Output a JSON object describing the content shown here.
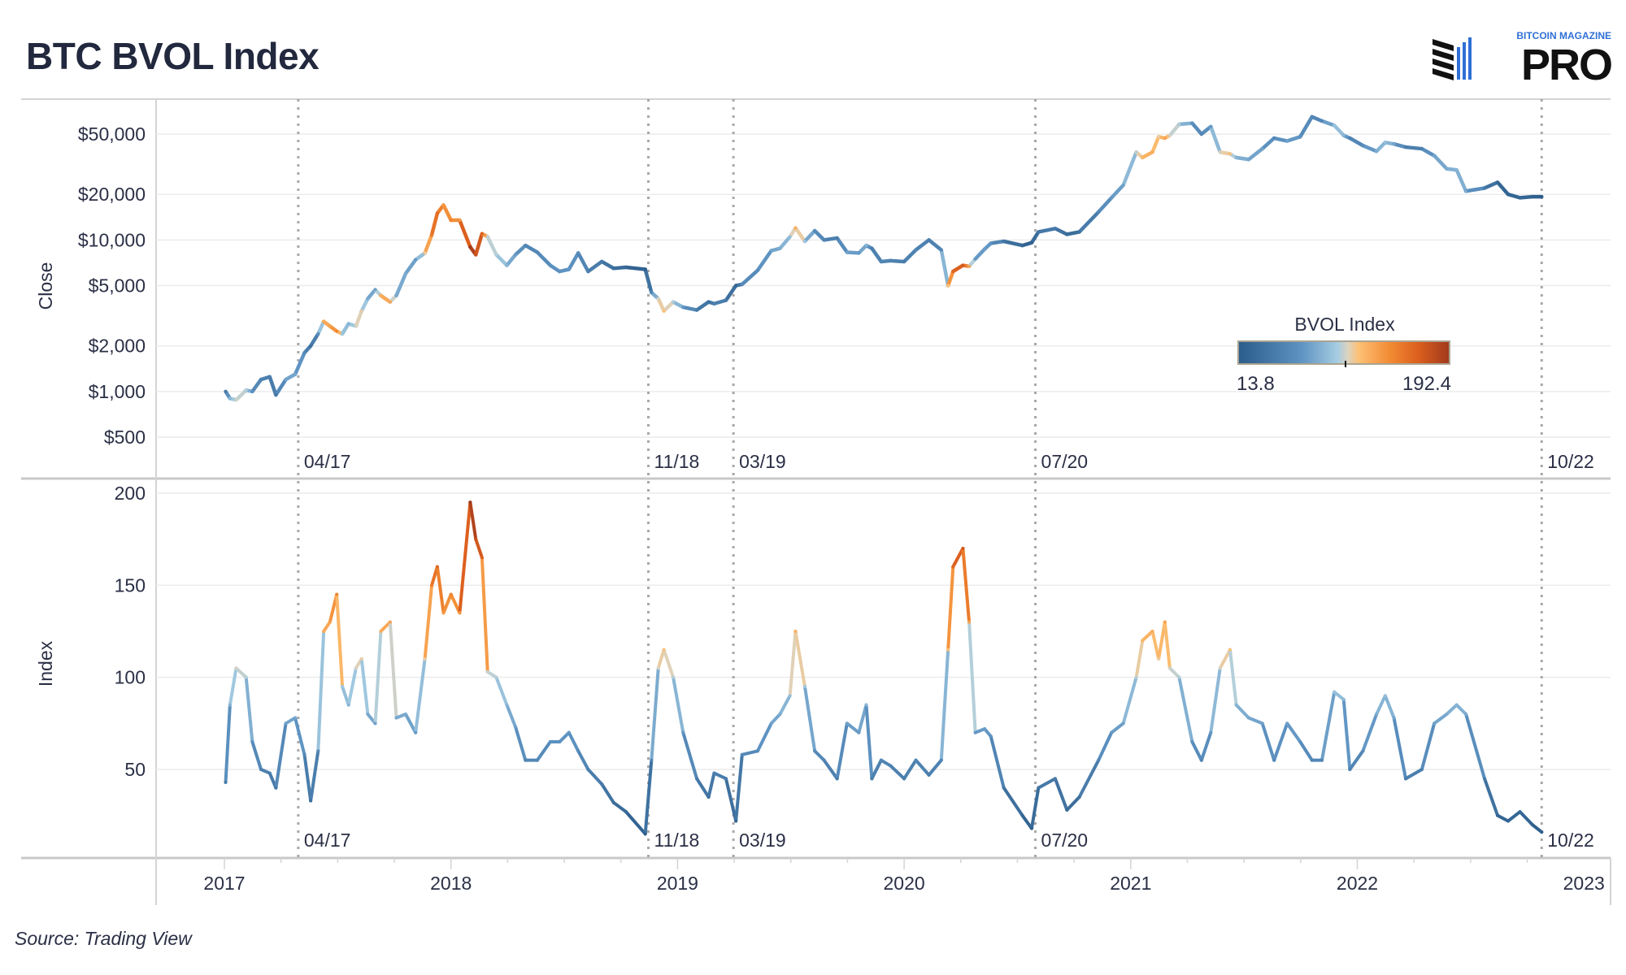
{
  "title": "BTC BVOL Index",
  "source": "Source: Trading View",
  "logo": {
    "top_text": "BITCOIN MAGAZINE",
    "main_text": "PRO",
    "accent": "#2f6fd6"
  },
  "legend": {
    "title": "BVOL Index",
    "min_label": "13.8",
    "max_label": "192.4",
    "min": 13.8,
    "max": 192.4
  },
  "colors": {
    "scale": [
      "#2b5c8a",
      "#5e93c2",
      "#a6cde2",
      "#ddd3bf",
      "#fcc074",
      "#f28a33",
      "#dc5f1e",
      "#a0391c"
    ],
    "grid": "#ececec",
    "reference_line": "#a8a8a8"
  },
  "chart_data": [
    {
      "type": "line",
      "panel": "top",
      "ylabel": "Close",
      "yscale": "log",
      "ylim": [
        330,
        75000
      ],
      "yticks": [
        {
          "value": 500,
          "label": "$500"
        },
        {
          "value": 1000,
          "label": "$1,000"
        },
        {
          "value": 2000,
          "label": "$2,000"
        },
        {
          "value": 5000,
          "label": "$5,000"
        },
        {
          "value": 10000,
          "label": "$10,000"
        },
        {
          "value": 20000,
          "label": "$20,000"
        },
        {
          "value": 50000,
          "label": "$50,000"
        }
      ],
      "color_by": "BVOL Index",
      "grid": true
    },
    {
      "type": "line",
      "panel": "bottom",
      "ylabel": "Index",
      "ylim": [
        0,
        205
      ],
      "yticks": [
        {
          "value": 50,
          "label": "50"
        },
        {
          "value": 100,
          "label": "100"
        },
        {
          "value": 150,
          "label": "150"
        },
        {
          "value": 200,
          "label": "200"
        }
      ],
      "color_by": "BVOL Index",
      "grid": true
    }
  ],
  "x_axis": {
    "ticks": [
      {
        "year": 2017,
        "label": "2017"
      },
      {
        "year": 2018,
        "label": "2018"
      },
      {
        "year": 2019,
        "label": "2019"
      },
      {
        "year": 2020,
        "label": "2020"
      },
      {
        "year": 2021,
        "label": "2021"
      },
      {
        "year": 2022,
        "label": "2022"
      },
      {
        "year": 2023,
        "label": "2023"
      }
    ]
  },
  "reference_lines": [
    {
      "date": "2017-04-30",
      "label": "04/17"
    },
    {
      "date": "2018-11-15",
      "label": "11/18"
    },
    {
      "date": "2019-04-01",
      "label": "03/19"
    },
    {
      "date": "2020-07-31",
      "label": "07/20"
    },
    {
      "date": "2022-10-25",
      "label": "10/22"
    }
  ],
  "series_points": {
    "columns": [
      "date",
      "close",
      "bvol"
    ],
    "rows": [
      [
        "2017-01-03",
        1000,
        43
      ],
      [
        "2017-01-10",
        900,
        85
      ],
      [
        "2017-01-20",
        880,
        105
      ],
      [
        "2017-02-05",
        1020,
        100
      ],
      [
        "2017-02-15",
        1000,
        65
      ],
      [
        "2017-03-01",
        1200,
        50
      ],
      [
        "2017-03-15",
        1250,
        48
      ],
      [
        "2017-03-25",
        950,
        40
      ],
      [
        "2017-04-10",
        1200,
        75
      ],
      [
        "2017-04-25",
        1300,
        78
      ],
      [
        "2017-05-10",
        1800,
        58
      ],
      [
        "2017-05-20",
        2000,
        33
      ],
      [
        "2017-06-01",
        2400,
        60
      ],
      [
        "2017-06-10",
        2900,
        125
      ],
      [
        "2017-06-20",
        2700,
        130
      ],
      [
        "2017-07-01",
        2500,
        145
      ],
      [
        "2017-07-10",
        2400,
        95
      ],
      [
        "2017-07-20",
        2800,
        85
      ],
      [
        "2017-08-01",
        2700,
        105
      ],
      [
        "2017-08-10",
        3400,
        110
      ],
      [
        "2017-08-20",
        4100,
        80
      ],
      [
        "2017-09-01",
        4700,
        75
      ],
      [
        "2017-09-10",
        4300,
        125
      ],
      [
        "2017-09-25",
        3900,
        130
      ],
      [
        "2017-10-05",
        4300,
        78
      ],
      [
        "2017-10-20",
        6000,
        80
      ],
      [
        "2017-11-05",
        7400,
        70
      ],
      [
        "2017-11-20",
        8200,
        110
      ],
      [
        "2017-12-01",
        10800,
        150
      ],
      [
        "2017-12-10",
        15000,
        160
      ],
      [
        "2017-12-20",
        17000,
        135
      ],
      [
        "2018-01-01",
        13500,
        145
      ],
      [
        "2018-01-15",
        13500,
        135
      ],
      [
        "2018-02-01",
        9000,
        195
      ],
      [
        "2018-02-10",
        8000,
        175
      ],
      [
        "2018-02-20",
        11000,
        165
      ],
      [
        "2018-03-01",
        10500,
        103
      ],
      [
        "2018-03-15",
        8000,
        100
      ],
      [
        "2018-04-01",
        6800,
        85
      ],
      [
        "2018-04-15",
        8000,
        73
      ],
      [
        "2018-05-01",
        9200,
        55
      ],
      [
        "2018-05-20",
        8300,
        55
      ],
      [
        "2018-06-10",
        6800,
        65
      ],
      [
        "2018-06-25",
        6200,
        65
      ],
      [
        "2018-07-10",
        6400,
        70
      ],
      [
        "2018-07-25",
        8200,
        60
      ],
      [
        "2018-08-10",
        6200,
        50
      ],
      [
        "2018-09-01",
        7200,
        42
      ],
      [
        "2018-09-20",
        6500,
        32
      ],
      [
        "2018-10-10",
        6600,
        27
      ],
      [
        "2018-11-10",
        6400,
        15
      ],
      [
        "2018-11-20",
        4500,
        55
      ],
      [
        "2018-12-01",
        4100,
        105
      ],
      [
        "2018-12-10",
        3400,
        115
      ],
      [
        "2018-12-25",
        3900,
        100
      ],
      [
        "2019-01-10",
        3600,
        70
      ],
      [
        "2019-02-01",
        3450,
        45
      ],
      [
        "2019-02-20",
        3900,
        35
      ],
      [
        "2019-03-01",
        3800,
        48
      ],
      [
        "2019-03-20",
        4000,
        45
      ],
      [
        "2019-04-05",
        5000,
        22
      ],
      [
        "2019-04-15",
        5100,
        58
      ],
      [
        "2019-05-10",
        6300,
        60
      ],
      [
        "2019-06-01",
        8500,
        75
      ],
      [
        "2019-06-15",
        8800,
        80
      ],
      [
        "2019-07-01",
        10500,
        90
      ],
      [
        "2019-07-10",
        12000,
        125
      ],
      [
        "2019-07-25",
        9800,
        95
      ],
      [
        "2019-08-10",
        11500,
        60
      ],
      [
        "2019-08-25",
        10000,
        55
      ],
      [
        "2019-09-15",
        10300,
        45
      ],
      [
        "2019-10-01",
        8300,
        75
      ],
      [
        "2019-10-20",
        8200,
        70
      ],
      [
        "2019-11-01",
        9200,
        85
      ],
      [
        "2019-11-10",
        8800,
        45
      ],
      [
        "2019-11-25",
        7200,
        55
      ],
      [
        "2019-12-10",
        7300,
        52
      ],
      [
        "2020-01-01",
        7200,
        45
      ],
      [
        "2020-01-20",
        8600,
        55
      ],
      [
        "2020-02-10",
        10000,
        47
      ],
      [
        "2020-03-01",
        8600,
        55
      ],
      [
        "2020-03-12",
        5000,
        115
      ],
      [
        "2020-03-20",
        6200,
        160
      ],
      [
        "2020-04-05",
        6800,
        170
      ],
      [
        "2020-04-15",
        6700,
        130
      ],
      [
        "2020-04-25",
        7500,
        70
      ],
      [
        "2020-05-10",
        8700,
        72
      ],
      [
        "2020-05-20",
        9500,
        68
      ],
      [
        "2020-06-10",
        9800,
        40
      ],
      [
        "2020-07-10",
        9200,
        25
      ],
      [
        "2020-07-25",
        9600,
        18
      ],
      [
        "2020-08-05",
        11300,
        40
      ],
      [
        "2020-09-01",
        11900,
        45
      ],
      [
        "2020-09-20",
        10900,
        28
      ],
      [
        "2020-10-10",
        11300,
        35
      ],
      [
        "2020-11-10",
        15300,
        55
      ],
      [
        "2020-12-01",
        19000,
        70
      ],
      [
        "2020-12-20",
        23000,
        75
      ],
      [
        "2021-01-10",
        38000,
        100
      ],
      [
        "2021-01-20",
        35000,
        120
      ],
      [
        "2021-02-05",
        38000,
        125
      ],
      [
        "2021-02-15",
        48000,
        110
      ],
      [
        "2021-02-25",
        47000,
        130
      ],
      [
        "2021-03-05",
        49000,
        105
      ],
      [
        "2021-03-20",
        58000,
        100
      ],
      [
        "2021-04-10",
        59000,
        65
      ],
      [
        "2021-04-25",
        50000,
        55
      ],
      [
        "2021-05-10",
        56000,
        70
      ],
      [
        "2021-05-25",
        38000,
        105
      ],
      [
        "2021-06-10",
        37000,
        115
      ],
      [
        "2021-06-20",
        35000,
        85
      ],
      [
        "2021-07-10",
        34000,
        78
      ],
      [
        "2021-08-01",
        40000,
        75
      ],
      [
        "2021-08-20",
        47000,
        55
      ],
      [
        "2021-09-10",
        45000,
        75
      ],
      [
        "2021-10-01",
        48000,
        65
      ],
      [
        "2021-10-20",
        65000,
        55
      ],
      [
        "2021-11-05",
        61000,
        55
      ],
      [
        "2021-11-25",
        57000,
        92
      ],
      [
        "2021-12-10",
        49000,
        88
      ],
      [
        "2021-12-20",
        47000,
        50
      ],
      [
        "2022-01-10",
        42000,
        60
      ],
      [
        "2022-02-01",
        38500,
        80
      ],
      [
        "2022-02-15",
        44000,
        90
      ],
      [
        "2022-03-01",
        43000,
        78
      ],
      [
        "2022-03-20",
        41000,
        45
      ],
      [
        "2022-04-15",
        40000,
        50
      ],
      [
        "2022-05-05",
        36000,
        75
      ],
      [
        "2022-05-25",
        29500,
        80
      ],
      [
        "2022-06-10",
        29000,
        85
      ],
      [
        "2022-06-25",
        21000,
        80
      ],
      [
        "2022-07-25",
        22000,
        45
      ],
      [
        "2022-08-15",
        24000,
        25
      ],
      [
        "2022-09-01",
        20000,
        22
      ],
      [
        "2022-09-20",
        19000,
        27
      ],
      [
        "2022-10-10",
        19300,
        20
      ],
      [
        "2022-10-25",
        19300,
        16
      ]
    ]
  }
}
